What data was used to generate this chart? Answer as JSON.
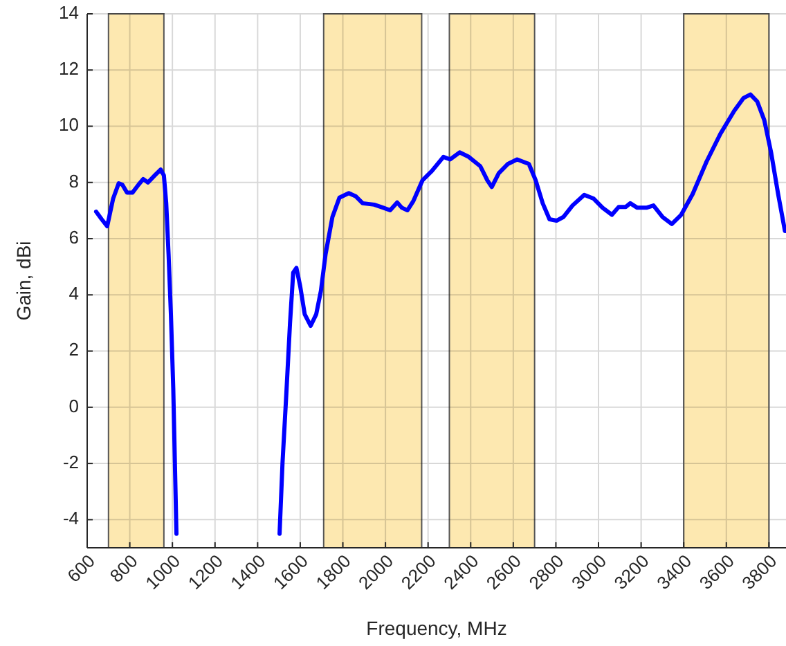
{
  "chart_data": {
    "type": "line",
    "xlabel": "Frequency, MHz",
    "ylabel": "Gain, dBi",
    "xlim": [
      600,
      3880
    ],
    "ylim": [
      -5,
      14
    ],
    "xticks": [
      600,
      800,
      1000,
      1200,
      1400,
      1600,
      1800,
      2000,
      2200,
      2400,
      2600,
      2800,
      3000,
      3200,
      3400,
      3600,
      3800
    ],
    "yticks": [
      -4,
      -2,
      0,
      2,
      4,
      6,
      8,
      10,
      12,
      14
    ],
    "grid": true,
    "marker": "none",
    "line_style": "solid",
    "bands": [
      {
        "axis": "x",
        "from": 700,
        "to": 960,
        "color": "#fde8b0"
      },
      {
        "axis": "x",
        "from": 1710,
        "to": 2170,
        "color": "#fde8b0"
      },
      {
        "axis": "x",
        "from": 2300,
        "to": 2700,
        "color": "#fde8b0"
      },
      {
        "axis": "x",
        "from": 3400,
        "to": 3800,
        "color": "#fde8b0"
      }
    ],
    "series": [
      {
        "color": "#0000ff",
        "x": [
          642,
          668,
          694,
          722,
          748,
          765,
          787,
          813,
          841,
          863,
          885,
          917,
          945,
          960,
          971,
          982,
          993,
          1004,
          1019,
          1200,
          1503,
          1517,
          1535,
          1552,
          1567,
          1582,
          1600,
          1621,
          1649,
          1675,
          1697,
          1719,
          1751,
          1784,
          1828,
          1860,
          1893,
          1947,
          1990,
          2022,
          2055,
          2077,
          2103,
          2131,
          2174,
          2218,
          2272,
          2304,
          2348,
          2391,
          2445,
          2478,
          2499,
          2532,
          2575,
          2618,
          2673,
          2705,
          2738,
          2770,
          2803,
          2835,
          2878,
          2933,
          2976,
          3019,
          3063,
          3095,
          3128,
          3149,
          3182,
          3225,
          3258,
          3301,
          3344,
          3388,
          3442,
          3507,
          3572,
          3637,
          3680,
          3713,
          3745,
          3778,
          3810,
          3843,
          3875
        ],
        "values": [
          6.96,
          6.69,
          6.44,
          7.43,
          7.97,
          7.92,
          7.64,
          7.64,
          7.92,
          8.12,
          8.0,
          8.25,
          8.46,
          8.25,
          7.26,
          5.45,
          3.31,
          0.68,
          -4.5,
          null,
          -4.5,
          -1.95,
          0.52,
          2.99,
          4.79,
          4.96,
          4.3,
          3.31,
          2.9,
          3.31,
          4.14,
          5.45,
          6.77,
          7.46,
          7.62,
          7.51,
          7.26,
          7.21,
          7.1,
          7.01,
          7.29,
          7.1,
          7.01,
          7.34,
          8.08,
          8.41,
          8.91,
          8.82,
          9.07,
          8.91,
          8.58,
          8.08,
          7.84,
          8.33,
          8.66,
          8.82,
          8.66,
          8.08,
          7.26,
          6.69,
          6.64,
          6.77,
          7.18,
          7.56,
          7.43,
          7.1,
          6.85,
          7.13,
          7.13,
          7.26,
          7.1,
          7.1,
          7.18,
          6.77,
          6.52,
          6.85,
          7.59,
          8.74,
          9.73,
          10.55,
          11.0,
          11.13,
          10.88,
          10.22,
          9.07,
          7.59,
          6.27
        ]
      }
    ]
  }
}
